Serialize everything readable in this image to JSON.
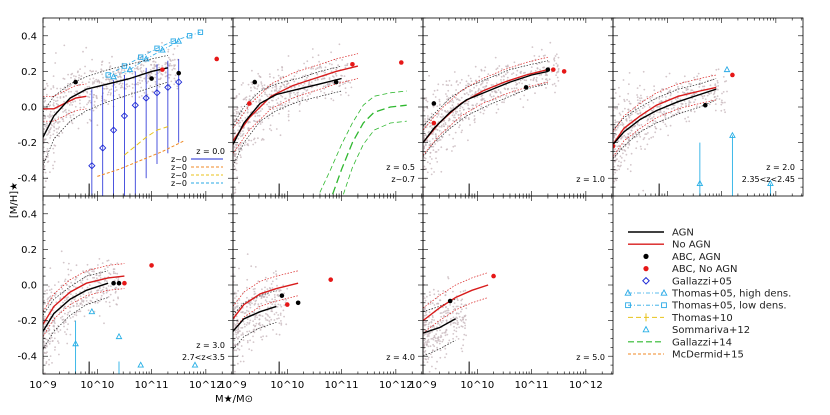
{
  "chart_data": {
    "type": "scatter",
    "figure": {
      "ylabel": "[M/H]★",
      "xlabel": "M★/M⊙",
      "xscale": "log",
      "xlim_log10": [
        9,
        12.5
      ],
      "ylim": [
        -0.5,
        0.5
      ],
      "x_tick_values_log10": [
        9,
        10,
        11,
        12
      ],
      "x_tick_labels": [
        "10^9",
        "10^10",
        "10^11",
        "10^12"
      ],
      "y_tick_values": [
        -0.4,
        -0.2,
        0.0,
        0.2,
        0.4
      ],
      "y_tick_labels": [
        "-0.4",
        "-0.2",
        "0.0",
        "0.2",
        "0.4"
      ]
    },
    "colors": {
      "agn": "#000000",
      "no_agn": "#d81b1b",
      "abc_agn": "#000000",
      "abc_no_agn": "#e61717",
      "gallazzi05": "#1f2bd6",
      "thomas05": "#29a9e6",
      "thomas10": "#e8c21a",
      "sommariva12": "#29b0e6",
      "gallazzi14": "#2fb82f",
      "mcdermid15": "#f08a24",
      "scatter": "#c4b3b8"
    },
    "legend": {
      "entries": [
        {
          "key": "agn",
          "label": "AGN"
        },
        {
          "key": "no_agn",
          "label": "No AGN"
        },
        {
          "key": "abc_agn",
          "label": "ABC, AGN"
        },
        {
          "key": "abc_no_agn",
          "label": "ABC, No AGN"
        },
        {
          "key": "gallazzi05",
          "label": "Gallazzi+05"
        },
        {
          "key": "thomas05_high",
          "label": "Thomas+05, high dens."
        },
        {
          "key": "thomas05_low",
          "label": "Thomas+05, low dens."
        },
        {
          "key": "thomas10",
          "label": "Thomas+10"
        },
        {
          "key": "sommariva12",
          "label": "Sommariva+12"
        },
        {
          "key": "gallazzi14",
          "label": "Gallazzi+14"
        },
        {
          "key": "mcdermid15",
          "label": "McDermid+15"
        }
      ]
    },
    "panels": [
      {
        "id": "z0",
        "redshift_label": "z = 0.0",
        "obs_labels": [
          "z~0",
          "z~0",
          "z~0",
          "z~0"
        ],
        "agn": {
          "x": [
            9.0,
            9.2,
            9.5,
            9.8,
            10.2,
            10.6,
            11.0,
            11.3
          ],
          "y": [
            -0.17,
            -0.05,
            0.05,
            0.1,
            0.13,
            0.16,
            0.2,
            0.22
          ],
          "lo": [
            -0.33,
            -0.18,
            -0.08,
            -0.02,
            0.03,
            0.07,
            0.11,
            0.14
          ],
          "hi": [
            -0.03,
            0.06,
            0.13,
            0.17,
            0.21,
            0.24,
            0.27,
            0.29
          ]
        },
        "no_agn": {
          "x": [
            9.0,
            9.2,
            9.4,
            9.6,
            9.8
          ],
          "y": [
            -0.01,
            -0.01,
            0.02,
            0.05,
            0.06
          ]
        },
        "abc_agn": {
          "x": [
            9.6,
            11.0,
            11.5
          ],
          "y": [
            0.14,
            0.16,
            0.19
          ]
        },
        "abc_no_agn": {
          "x": [
            11.2,
            12.2
          ],
          "y": [
            0.21,
            0.27
          ]
        },
        "gallazzi05": {
          "x": [
            9.9,
            10.1,
            10.3,
            10.5,
            10.7,
            10.9,
            11.1,
            11.3,
            11.5
          ],
          "y": [
            -0.33,
            -0.23,
            -0.13,
            -0.05,
            0.01,
            0.05,
            0.08,
            0.11,
            0.14
          ],
          "lo": [
            -1.0,
            -0.9,
            -0.8,
            -0.65,
            -0.52,
            -0.4,
            -0.32,
            -0.26,
            -0.2
          ],
          "hi": [
            0.1,
            0.12,
            0.15,
            0.18,
            0.2,
            0.22,
            0.24,
            0.26,
            0.27
          ]
        },
        "thomas05_high": {
          "x": [
            10.3,
            10.6,
            10.9,
            11.2,
            11.5
          ],
          "y": [
            0.17,
            0.21,
            0.27,
            0.32,
            0.37
          ]
        },
        "thomas05_low": {
          "x": [
            10.2,
            10.5,
            10.8,
            11.1,
            11.4,
            11.7,
            11.9
          ],
          "y": [
            0.18,
            0.23,
            0.28,
            0.33,
            0.37,
            0.4,
            0.42
          ]
        },
        "thomas10": {
          "x": [
            10.5,
            10.7,
            10.9,
            11.1,
            11.3
          ],
          "y": [
            -0.27,
            -0.22,
            -0.17,
            -0.13,
            -0.11
          ]
        },
        "mcdermid15": {
          "x": [
            10.0,
            10.4,
            10.8,
            11.2,
            11.6
          ],
          "y": [
            -0.39,
            -0.35,
            -0.3,
            -0.25,
            -0.19
          ]
        }
      },
      {
        "id": "z05",
        "redshift_label": "z = 0.5",
        "sub_label": "z~0.7",
        "agn": {
          "x": [
            9.0,
            9.2,
            9.5,
            9.8,
            10.2,
            10.6,
            11.0
          ],
          "y": [
            -0.21,
            -0.09,
            0.02,
            0.07,
            0.1,
            0.13,
            0.16
          ],
          "lo": [
            -0.33,
            -0.2,
            -0.08,
            -0.02,
            0.03,
            0.06,
            0.09
          ],
          "hi": [
            -0.1,
            0.0,
            0.09,
            0.13,
            0.16,
            0.2,
            0.23
          ]
        },
        "no_agn": {
          "x": [
            9.0,
            9.3,
            9.7,
            10.1,
            10.5,
            10.9,
            11.3
          ],
          "y": [
            -0.19,
            -0.06,
            0.06,
            0.12,
            0.16,
            0.2,
            0.23
          ]
        },
        "abc_agn": {
          "x": [
            9.4,
            10.9
          ],
          "y": [
            0.14,
            0.14
          ]
        },
        "abc_no_agn": {
          "x": [
            9.3,
            11.2,
            12.1
          ],
          "y": [
            0.02,
            0.24,
            0.25
          ]
        },
        "gallazzi14": {
          "x": [
            10.6,
            10.8,
            11.0,
            11.2,
            11.4,
            11.6,
            11.9,
            12.2
          ],
          "y": [
            -0.68,
            -0.52,
            -0.35,
            -0.2,
            -0.09,
            -0.03,
            0.0,
            0.01
          ],
          "lo": [
            -0.92,
            -0.72,
            -0.52,
            -0.34,
            -0.21,
            -0.13,
            -0.09,
            -0.08
          ],
          "hi": [
            -0.48,
            -0.35,
            -0.21,
            -0.09,
            0.01,
            0.06,
            0.08,
            0.09
          ]
        }
      },
      {
        "id": "z1",
        "redshift_label": "z = 1.0",
        "agn": {
          "x": [
            9.0,
            9.2,
            9.5,
            9.8,
            10.2,
            10.6,
            11.0,
            11.3
          ],
          "y": [
            -0.2,
            -0.12,
            -0.03,
            0.04,
            0.09,
            0.14,
            0.18,
            0.2
          ],
          "lo": [
            -0.28,
            -0.2,
            -0.12,
            -0.05,
            0.01,
            0.06,
            0.11,
            0.13
          ],
          "hi": [
            -0.11,
            -0.04,
            0.05,
            0.11,
            0.16,
            0.21,
            0.24,
            0.26
          ]
        },
        "no_agn": {
          "x": [
            9.0,
            9.3,
            9.7,
            10.1,
            10.5,
            10.9,
            11.3
          ],
          "y": [
            -0.2,
            -0.09,
            0.02,
            0.09,
            0.14,
            0.18,
            0.21
          ]
        },
        "abc_agn": {
          "x": [
            9.2,
            10.9,
            11.3
          ],
          "y": [
            0.02,
            0.11,
            0.21
          ]
        },
        "abc_no_agn": {
          "x": [
            9.2,
            11.4,
            11.6
          ],
          "y": [
            -0.09,
            0.21,
            0.2
          ]
        }
      },
      {
        "id": "z2",
        "redshift_label": "z = 2.0",
        "sub_label": "2.35<z<2.45",
        "agn": {
          "x": [
            9.0,
            9.2,
            9.5,
            9.8,
            10.2,
            10.6,
            10.9
          ],
          "y": [
            -0.21,
            -0.14,
            -0.07,
            -0.02,
            0.03,
            0.07,
            0.1
          ],
          "lo": [
            -0.29,
            -0.22,
            -0.14,
            -0.09,
            -0.04,
            0.0,
            0.04
          ],
          "hi": [
            -0.13,
            -0.06,
            0.0,
            0.05,
            0.1,
            0.13,
            0.16
          ]
        },
        "no_agn": {
          "x": [
            9.0,
            9.2,
            9.5,
            9.8,
            10.2,
            10.6,
            10.9
          ],
          "y": [
            -0.21,
            -0.12,
            -0.05,
            0.01,
            0.06,
            0.09,
            0.11
          ]
        },
        "abc_agn": {
          "x": [
            10.7
          ],
          "y": [
            0.01
          ]
        },
        "abc_no_agn": {
          "x": [
            9.0,
            11.2
          ],
          "y": [
            -0.22,
            0.18
          ]
        },
        "sommariva12": {
          "x": [
            10.6,
            11.2,
            11.9
          ],
          "y": [
            -0.43,
            -0.16,
            -0.43
          ],
          "lo": [
            -0.5,
            -0.5,
            -0.5
          ],
          "hi": [
            -0.2,
            -0.16,
            -0.43
          ]
        },
        "thomas05_high": {
          "x": [
            11.1
          ],
          "y": [
            0.21
          ]
        }
      },
      {
        "id": "z3",
        "redshift_label": "z = 3.0",
        "sub_label": "2.7<z<3.5",
        "agn": {
          "x": [
            9.0,
            9.2,
            9.5,
            9.8,
            10.2
          ],
          "y": [
            -0.26,
            -0.16,
            -0.08,
            -0.03,
            0.01
          ],
          "lo": [
            -0.36,
            -0.26,
            -0.17,
            -0.11,
            -0.07
          ],
          "hi": [
            -0.17,
            -0.08,
            -0.01,
            0.05,
            0.08
          ]
        },
        "no_agn": {
          "x": [
            9.0,
            9.2,
            9.5,
            9.8,
            10.2,
            10.5
          ],
          "y": [
            -0.22,
            -0.12,
            -0.04,
            0.01,
            0.04,
            0.05
          ]
        },
        "abc_agn": {
          "x": [
            10.3,
            10.4
          ],
          "y": [
            0.01,
            0.01
          ]
        },
        "abc_no_agn": {
          "x": [
            10.5,
            11.0
          ],
          "y": [
            0.01,
            0.11
          ]
        },
        "sommariva12": {
          "x": [
            9.6,
            10.4,
            9.9,
            10.8,
            11.8
          ],
          "y": [
            -0.33,
            -0.29,
            -0.15,
            -0.45,
            -0.45
          ],
          "lo": [
            -0.5,
            -0.5,
            -0.15,
            -0.45,
            -0.45
          ],
          "hi": [
            -0.2,
            -0.43,
            -0.15,
            -0.45,
            -0.45
          ]
        }
      },
      {
        "id": "z4",
        "redshift_label": "z = 4.0",
        "agn": {
          "x": [
            9.0,
            9.2,
            9.5,
            9.8
          ],
          "y": [
            -0.26,
            -0.19,
            -0.15,
            -0.12
          ],
          "lo": [
            -0.36,
            -0.29,
            -0.24,
            -0.21
          ],
          "hi": [
            -0.17,
            -0.1,
            -0.06,
            -0.03
          ]
        },
        "no_agn": {
          "x": [
            9.0,
            9.2,
            9.5,
            9.8,
            10.2
          ],
          "y": [
            -0.19,
            -0.11,
            -0.05,
            -0.02,
            0.01
          ]
        },
        "abc_agn": {
          "x": [
            9.9,
            10.2
          ],
          "y": [
            -0.06,
            -0.1
          ]
        },
        "abc_no_agn": {
          "x": [
            10.0,
            10.8
          ],
          "y": [
            -0.11,
            0.03
          ]
        }
      },
      {
        "id": "z5",
        "redshift_label": "z = 5.0",
        "agn": {
          "x": [
            9.0,
            9.3,
            9.6
          ],
          "y": [
            -0.27,
            -0.24,
            -0.19
          ],
          "lo": [
            -0.4,
            -0.36,
            -0.31
          ],
          "hi": [
            -0.15,
            -0.12,
            -0.08
          ]
        },
        "no_agn": {
          "x": [
            9.0,
            9.3,
            9.6,
            9.9,
            10.2
          ],
          "y": [
            -0.2,
            -0.13,
            -0.07,
            -0.03,
            0.0
          ]
        },
        "abc_agn": {
          "x": [
            9.5
          ],
          "y": [
            -0.09
          ]
        },
        "abc_no_agn": {
          "x": [
            10.3
          ],
          "y": [
            0.05
          ]
        }
      }
    ]
  }
}
